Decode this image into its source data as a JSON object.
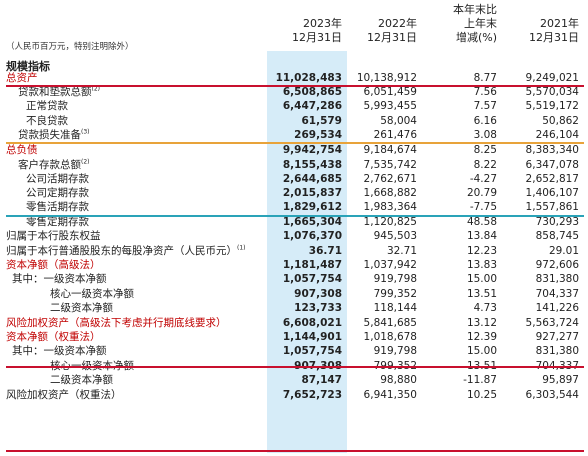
{
  "header": {
    "col_2023_line1": "2023年",
    "col_2023_line2": "12月31日",
    "col_2022_line1": "2022年",
    "col_2022_line2": "12月31日",
    "col_chg_line1": "本年末比",
    "col_chg_line2": "上年末",
    "col_chg_line3": "增减(%)",
    "col_2021_line1": "2021年",
    "col_2021_line2": "12月31日",
    "unit_note": "（人民币百万元，特别注明除外）"
  },
  "section_title": "规模指标",
  "rows": [
    {
      "label": "总资产",
      "note": "",
      "v2023": "11,028,483",
      "v2022": "10,138,912",
      "chg": "8.77",
      "v2021": "9,249,021"
    },
    {
      "label": "贷款和垫款总额",
      "note": "(2)",
      "v2023": "6,508,865",
      "v2022": "6,051,459",
      "chg": "7.56",
      "v2021": "5,570,034"
    },
    {
      "label": "正常贷款",
      "note": "",
      "v2023": "6,447,286",
      "v2022": "5,993,455",
      "chg": "7.57",
      "v2021": "5,519,172"
    },
    {
      "label": "不良贷款",
      "note": "",
      "v2023": "61,579",
      "v2022": "58,004",
      "chg": "6.16",
      "v2021": "50,862"
    },
    {
      "label": "贷款损失准备",
      "note": "(3)",
      "v2023": "269,534",
      "v2022": "261,476",
      "chg": "3.08",
      "v2021": "246,104"
    },
    {
      "label": "总负债",
      "note": "",
      "v2023": "9,942,754",
      "v2022": "9,184,674",
      "chg": "8.25",
      "v2021": "8,383,340"
    },
    {
      "label": "客户存款总额",
      "note": "(2)",
      "v2023": "8,155,438",
      "v2022": "7,535,742",
      "chg": "8.22",
      "v2021": "6,347,078"
    },
    {
      "label": "公司活期存款",
      "note": "",
      "v2023": "2,644,685",
      "v2022": "2,762,671",
      "chg": "-4.27",
      "v2021": "2,652,817"
    },
    {
      "label": "公司定期存款",
      "note": "",
      "v2023": "2,015,837",
      "v2022": "1,668,882",
      "chg": "20.79",
      "v2021": "1,406,107"
    },
    {
      "label": "零售活期存款",
      "note": "",
      "v2023": "1,829,612",
      "v2022": "1,983,364",
      "chg": "-7.75",
      "v2021": "1,557,861"
    },
    {
      "label": "零售定期存款",
      "note": "",
      "v2023": "1,665,304",
      "v2022": "1,120,825",
      "chg": "48.58",
      "v2021": "730,293"
    },
    {
      "label": "归属于本行股东权益",
      "note": "",
      "v2023": "1,076,370",
      "v2022": "945,503",
      "chg": "13.84",
      "v2021": "858,745"
    },
    {
      "label": "归属于本行普通股股东的每股净资产（人民币元）",
      "note": "(1)",
      "v2023": "36.71",
      "v2022": "32.71",
      "chg": "12.23",
      "v2021": "29.01"
    },
    {
      "label": "资本净额（高级法）",
      "note": "",
      "v2023": "1,181,487",
      "v2022": "1,037,942",
      "chg": "13.83",
      "v2021": "972,606"
    },
    {
      "label": "其中：一级资本净额",
      "note": "",
      "v2023": "1,057,754",
      "v2022": "919,798",
      "chg": "15.00",
      "v2021": "831,380"
    },
    {
      "label": "核心一级资本净额",
      "note": "",
      "v2023": "907,308",
      "v2022": "799,352",
      "chg": "13.51",
      "v2021": "704,337"
    },
    {
      "label": "二级资本净额",
      "note": "",
      "v2023": "123,733",
      "v2022": "118,144",
      "chg": "4.73",
      "v2021": "141,226"
    },
    {
      "label": "风险加权资产（高级法下考虑并行期底线要求）",
      "note": "",
      "v2023": "6,608,021",
      "v2022": "5,841,685",
      "chg": "13.12",
      "v2021": "5,563,724"
    },
    {
      "label": "资本净额（权重法）",
      "note": "",
      "v2023": "1,144,901",
      "v2022": "1,018,678",
      "chg": "12.39",
      "v2021": "927,277"
    },
    {
      "label": "其中：一级资本净额",
      "note": "",
      "v2023": "1,057,754",
      "v2022": "919,798",
      "chg": "15.00",
      "v2021": "831,380"
    },
    {
      "label": "核心一级资本净额",
      "note": "",
      "v2023": "907,308",
      "v2022": "799,352",
      "chg": "13.51",
      "v2021": "704,337"
    },
    {
      "label": "二级资本净额",
      "note": "",
      "v2023": "87,147",
      "v2022": "98,880",
      "chg": "-11.87",
      "v2021": "95,897"
    },
    {
      "label": "风险加权资产（权重法）",
      "note": "",
      "v2023": "7,652,723",
      "v2022": "6,941,350",
      "chg": "10.25",
      "v2021": "6,303,544"
    }
  ],
  "colors": {
    "red_label": "#c00000",
    "red_line": "#c8102e",
    "orange_line": "#e8a33a",
    "teal_line": "#2aa3b8",
    "highlight": "#d6ecf8"
  }
}
